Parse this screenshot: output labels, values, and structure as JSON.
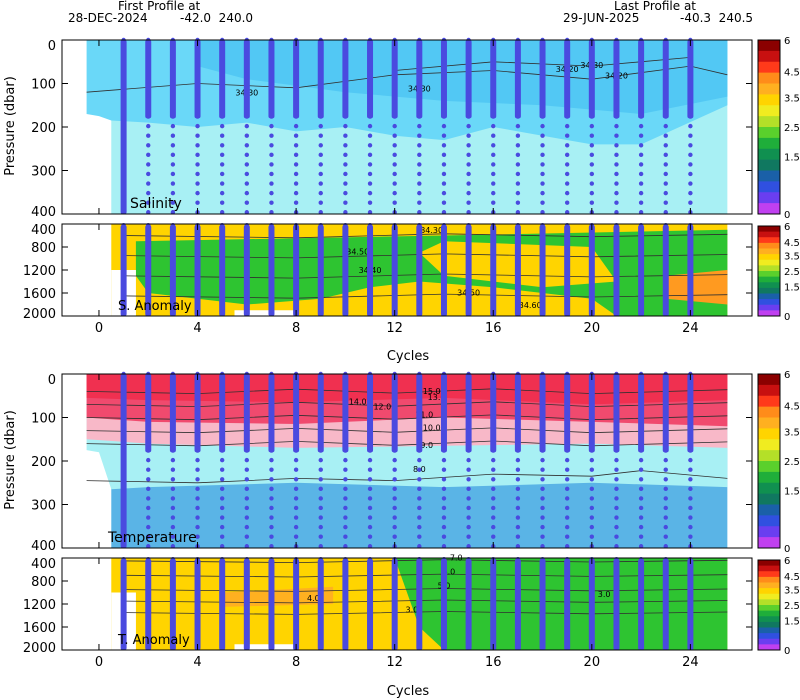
{
  "header": {
    "first_label": "First Profile at",
    "first_date": "28-DEC-2024",
    "first_coords": "-42.0  240.0",
    "last_label": "Last Profile at",
    "last_date": "29-JUN-2025",
    "last_coords": "-40.3  240.5"
  },
  "axes": {
    "pressure_label": "Pressure (dbar)",
    "cycles_label": "Cycles",
    "cycle_ticks": [
      "0",
      "4",
      "8",
      "12",
      "16",
      "20",
      "24"
    ],
    "main_pressure_ticks": [
      "0",
      "100",
      "200",
      "300",
      "400"
    ],
    "anomaly_pressure_ticks": [
      "400",
      "800",
      "1200",
      "1600",
      "2000"
    ]
  },
  "colorbar_ticks": [
    "6",
    "4.5",
    "3.5",
    "2.5",
    "1.5",
    "0"
  ],
  "colors": {
    "profile_dots": "#4a4adf",
    "salinity_fill": "#a8f0f4",
    "temperature_warm": "#f04a6e",
    "temperature_cold": "#5ab4e6",
    "anomaly_yellow": "#ffd400",
    "anomaly_green": "#2ec431"
  },
  "panels": {
    "salinity_label": "Salinity",
    "salinity_anomaly_label": "S. Anomaly",
    "temperature_label": "Temperature",
    "temperature_anomaly_label": "T. Anomaly"
  },
  "contour_labels": {
    "salinity": [
      "34.30",
      "34.30",
      "34.20",
      "34.30",
      "34.20"
    ],
    "salinity_anomaly": [
      "34.30",
      "34.50",
      "34.40",
      "34.50",
      "34.60"
    ],
    "temperature": [
      "14.0",
      "12.0",
      "10.0",
      "9.0",
      "8.0",
      "15.0",
      "13.0",
      "11.0"
    ],
    "temperature_anomaly": [
      "7.0",
      "6.0",
      "5.0",
      "4.0",
      "3.0",
      "3.0"
    ]
  },
  "chart_data": [
    {
      "type": "heatmap",
      "title": "Salinity",
      "xlabel": "",
      "ylabel": "Pressure (dbar)",
      "xlim": [
        -1.5,
        26.5
      ],
      "ylim": [
        400,
        0
      ],
      "profile_cycles": [
        1,
        2,
        3,
        4,
        5,
        6,
        7,
        8,
        9,
        10,
        11,
        12,
        13,
        14,
        15,
        16,
        17,
        18,
        19,
        20,
        21,
        22,
        23,
        24
      ],
      "colorbar_ticks": [
        0,
        1.5,
        2.5,
        3.5,
        4.5,
        6
      ]
    },
    {
      "type": "heatmap",
      "title": "S. Anomaly",
      "ylabel": "",
      "xlim": [
        -1.5,
        26.5
      ],
      "ylim": [
        2000,
        400
      ],
      "colorbar_ticks": [
        0,
        1.5,
        2.5,
        3.5,
        4.5,
        6
      ]
    },
    {
      "type": "heatmap",
      "title": "Temperature",
      "xlabel": "",
      "ylabel": "Pressure (dbar)",
      "xlim": [
        -1.5,
        26.5
      ],
      "ylim": [
        400,
        0
      ],
      "profile_cycles": [
        1,
        2,
        3,
        4,
        5,
        6,
        7,
        8,
        9,
        10,
        11,
        12,
        13,
        14,
        15,
        16,
        17,
        18,
        19,
        20,
        21,
        22,
        23,
        24
      ],
      "colorbar_ticks": [
        0,
        1.5,
        2.5,
        3.5,
        4.5,
        6
      ]
    },
    {
      "type": "heatmap",
      "title": "T. Anomaly",
      "xlabel": "Cycles",
      "ylabel": "",
      "xlim": [
        -1.5,
        26.5
      ],
      "ylim": [
        2000,
        400
      ],
      "colorbar_ticks": [
        0,
        1.5,
        2.5,
        3.5,
        4.5,
        6
      ]
    }
  ]
}
